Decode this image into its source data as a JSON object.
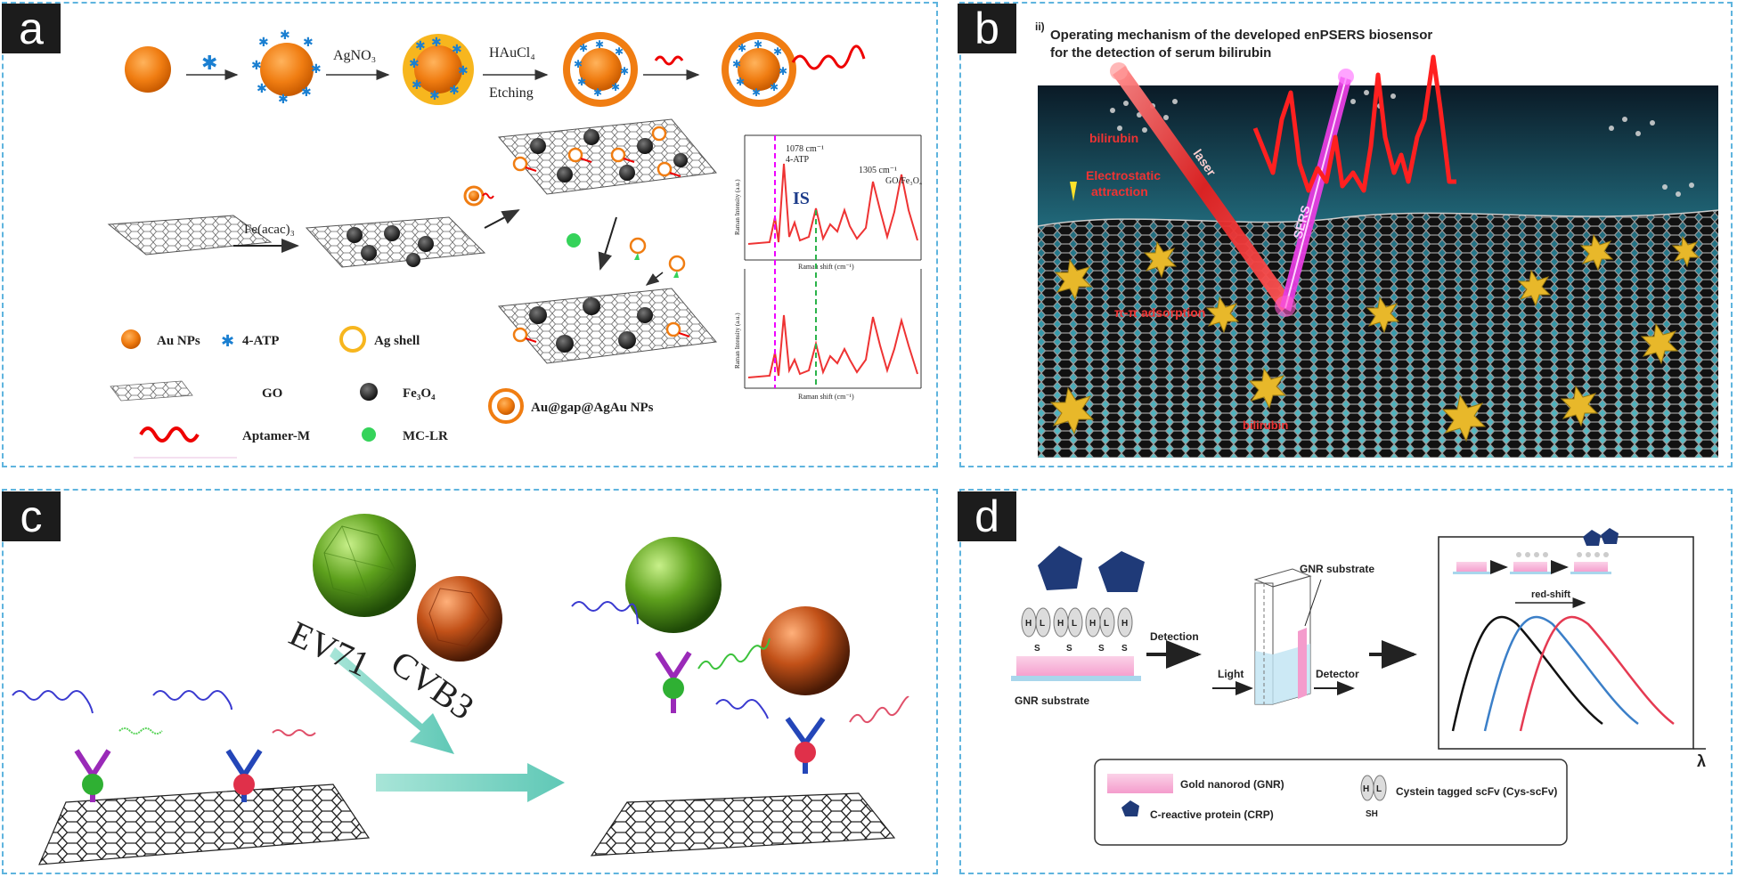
{
  "panels": {
    "a": {
      "tag": "a",
      "steps": {
        "agno3": "AgNO₃",
        "hauc": "HAuCl₄",
        "etching": "Etching",
        "feacac": "Fe(acac)₃"
      },
      "legend": {
        "au": "Au NPs",
        "atp": "4-ATP",
        "ag": "Ag shell",
        "go": "GO",
        "fe": "Fe₃O₄",
        "aptamer": "Aptamer-M",
        "mclr": "MC-LR",
        "auag": "Au@gap@AgAu NPs"
      },
      "spectrum": {
        "peak1": "1078 cm⁻¹",
        "peak1b": "4-ATP",
        "peak2": "1305 cm⁻¹",
        "peak2b": "GO/Fe₃O₄",
        "is": "IS",
        "ylabel": "Raman Intensity (a.u.)",
        "xlabel": "Raman shift (cm⁻¹)"
      }
    },
    "b": {
      "tag": "b",
      "roman": "ii)",
      "title1": "Operating mechanism of the developed enPSERS biosensor",
      "title2": "for the detection of serum bilirubin",
      "labels": {
        "bilirubin_top": "bilirubin",
        "electrostatic1": "Electrostatic",
        "electrostatic2": "attraction",
        "pipi": "π-π adsorption",
        "bilirubin_bottom": "bilirubin",
        "laser": "laser",
        "sers": "SERS"
      }
    },
    "c": {
      "tag": "c",
      "ev71": "EV71",
      "cvb3": "CVB3"
    },
    "d": {
      "tag": "d",
      "gnr_substrate": "GNR substrate",
      "gnr_substrate_top": "GNR substrate",
      "detection": "Detection",
      "light": "Light",
      "detector": "Detector",
      "red_shift": "red-shift",
      "lambda": "λ",
      "legend": {
        "gnr": "Gold nanorod (GNR)",
        "crp": "C-reactive protein (CRP)",
        "scfv": "Cystein tagged scFv (Cys-scFv)",
        "h": "H",
        "l": "L",
        "sh": "SH",
        "s": "S"
      }
    }
  }
}
